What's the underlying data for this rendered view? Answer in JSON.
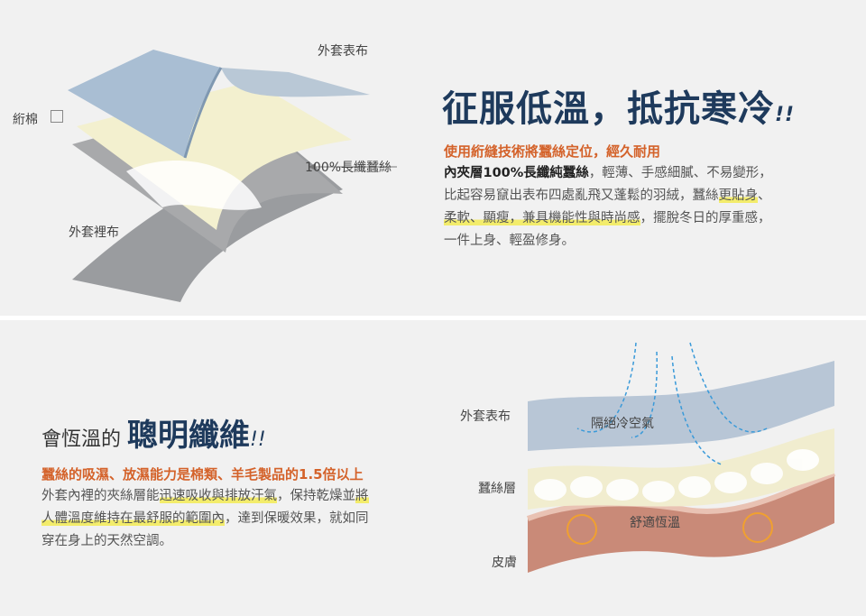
{
  "top": {
    "diagram_labels": {
      "outer_fabric": "外套表布",
      "padding": "絎棉",
      "silk": "100%長纖蠶絲",
      "lining": "外套裡布"
    },
    "title": "征服低溫，抵抗寒冷",
    "title_mark": "!!",
    "subtitle": "使用絎縫技術將蠶絲定位，經久耐用",
    "body_bold": "內夾層100%長纖純蠶絲",
    "body_line1_rest": "，輕薄、手感細膩、不易變形，",
    "body_line2_plain": "比起容易竄出表布四處亂飛又蓬鬆的羽絨，蠶絲",
    "body_line2_hl": "更貼身",
    "body_line2_end": "、",
    "body_line3_hl": "柔軟、顯瘦，兼具機能性與時尚感",
    "body_line3_rest": "，擺脫冬日的厚重感，",
    "body_line4": "一件上身、輕盈修身。"
  },
  "bottom": {
    "title_prefix": "會恆溫的",
    "title_main": "聰明纖維",
    "title_mark": "!!",
    "subtitle": "蠶絲的吸濕、放濕能力是棉類、羊毛製品的1.5倍以上",
    "line1_plain": "外套內裡的夾絲層能",
    "line1_hl": "迅速吸收與排放汗氣",
    "line1_rest": "，保持乾燥並",
    "line1_hl2": "將",
    "line2_hl": "人體溫度維持在最舒服的範圍內",
    "line2_rest": "，達到保暖效果，就如同",
    "line3": "穿在身上的天然空調。",
    "diagram_labels": {
      "outer_fabric": "外套表布",
      "silk_layer": "蠶絲層",
      "skin": "皮膚",
      "insulate": "隔絕冷空氣",
      "comfort": "舒適恆溫"
    }
  },
  "colors": {
    "title": "#1e3a5c",
    "accent": "#d4622a",
    "highlight": "#f3ec6b",
    "arrow": "#3a9ad9",
    "cycle": "#f0a030"
  }
}
